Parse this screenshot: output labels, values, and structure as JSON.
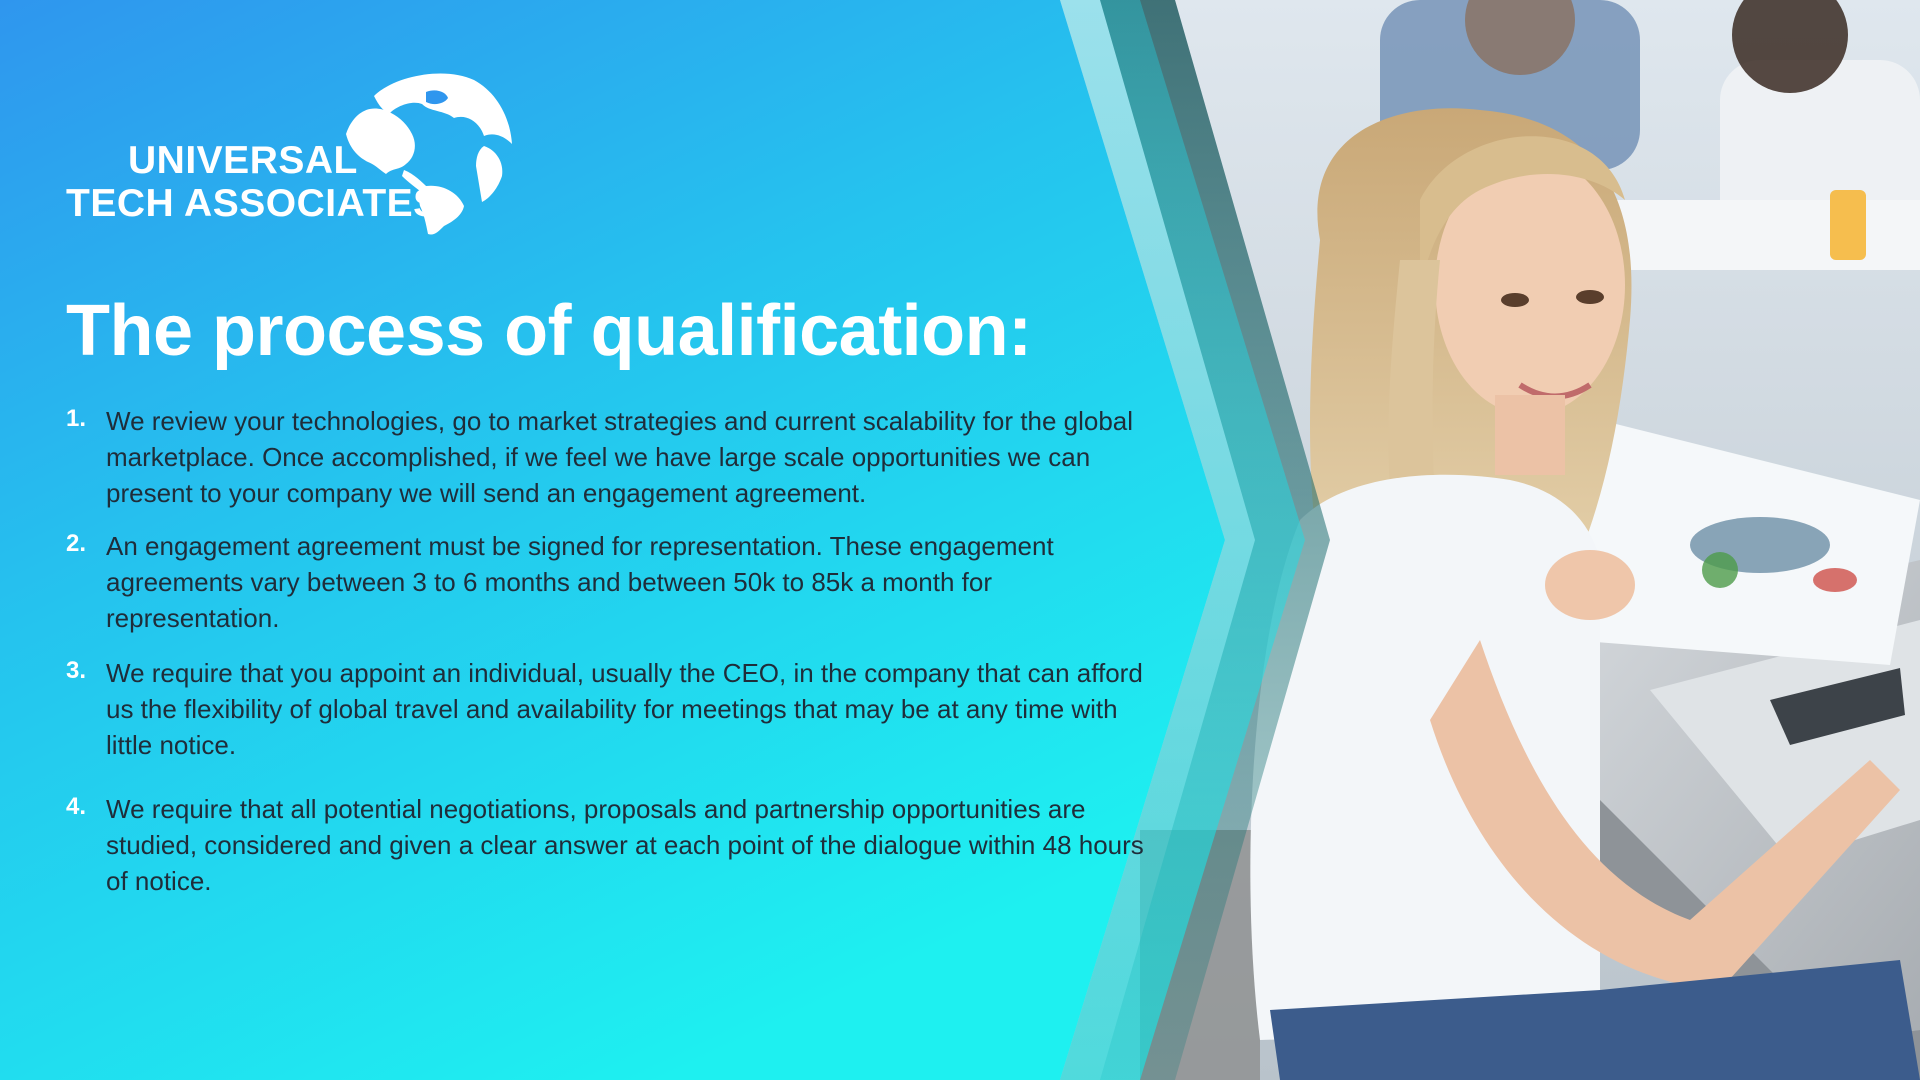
{
  "logo": {
    "line1": "UNIVERSAL",
    "line2": "TECH ASSOCIATES",
    "icon": "globe-icon"
  },
  "title": "The process of qualification:",
  "steps": [
    {
      "number": "1.",
      "text": "We review your technologies, go to market strategies and current scalability for the global marketplace.  Once accomplished, if we feel we have large scale opportunities we can present to your company we will send an engagement agreement."
    },
    {
      "number": "2.",
      "text": "An engagement agreement must be signed for representation. These engagement agreements vary between 3 to 6 months and between 50k to 85k a month for representation."
    },
    {
      "number": "3.",
      "text": "We require that you appoint an individual, usually the CEO, in the company that can afford us the flexibility of global travel and availability for meetings that may be at any time with little notice."
    },
    {
      "number": "4.",
      "text": "We require that all potential negotiations, proposals and partnership opportunities are studied, considered and given a clear answer at each point of the dialogue within 48 hours of notice."
    }
  ],
  "colors": {
    "gradient_top_left": "#2f9ff0",
    "gradient_bottom": "#22e4f0",
    "heading": "#ffffff",
    "body_text": "#1f2d3a"
  }
}
